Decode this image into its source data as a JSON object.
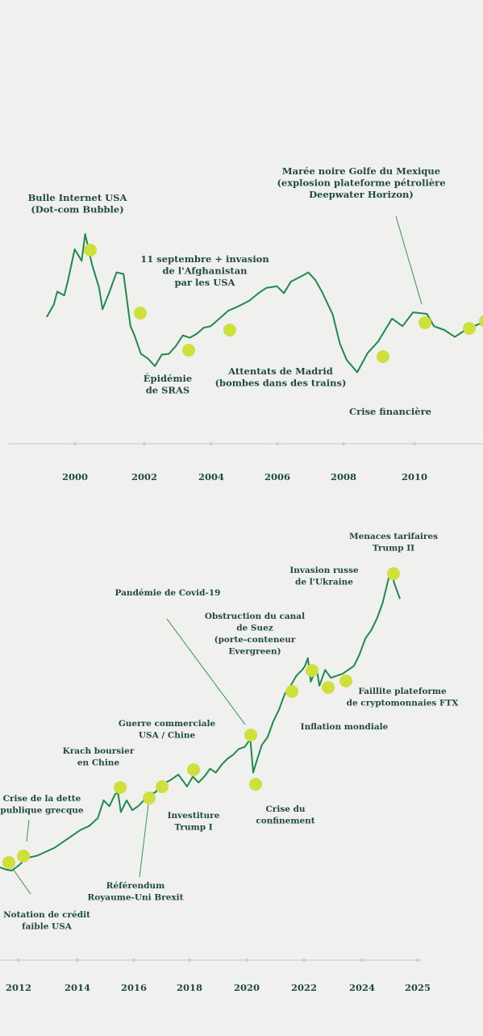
{
  "colors": {
    "background": "#f0f0ef",
    "line": "#1e8a4c",
    "marker": "#cfe03c",
    "text": "#1f4a3d",
    "axis": "#cfd1cf"
  },
  "chart_data": [
    {
      "type": "line",
      "title": "",
      "xlabel": "",
      "ylabel": "",
      "x_ticks": [
        "2000",
        "2002",
        "2004",
        "2006",
        "2008",
        "2010"
      ],
      "x": [
        1999.4,
        1999.6,
        1999.7,
        1999.9,
        2000.0,
        2000.2,
        2000.4,
        2000.5,
        2000.7,
        2000.9,
        2001.0,
        2001.2,
        2001.4,
        2001.6,
        2001.8,
        2001.9,
        2002.1,
        2002.3,
        2002.5,
        2002.7,
        2002.9,
        2003.1,
        2003.3,
        2003.5,
        2003.7,
        2003.9,
        2004.1,
        2004.3,
        2004.6,
        2004.9,
        2005.2,
        2005.5,
        2005.7,
        2006.0,
        2006.2,
        2006.4,
        2006.7,
        2006.9,
        2007.1,
        2007.3,
        2007.6,
        2007.8,
        2008.0,
        2008.3,
        2008.6,
        2008.9,
        2009.1,
        2009.3,
        2009.6,
        2009.9,
        2010.3,
        2010.5,
        2010.8,
        2011.1,
        2011.4,
        2011.7,
        2011.9,
        2012.0
      ],
      "values": [
        352,
        368,
        385,
        380,
        398,
        440,
        425,
        460,
        420,
        390,
        362,
        385,
        410,
        408,
        340,
        330,
        304,
        298,
        288,
        303,
        304,
        314,
        328,
        325,
        330,
        338,
        340,
        348,
        360,
        366,
        373,
        384,
        390,
        392,
        383,
        398,
        405,
        410,
        400,
        384,
        355,
        318,
        296,
        280,
        305,
        320,
        335,
        350,
        340,
        358,
        356,
        340,
        335,
        326,
        335,
        341,
        345,
        346
      ],
      "markers": [
        {
          "x": 2000.4,
          "y": 440,
          "label": "Bulle Internet USA\n(Dot-com Bubble)"
        },
        {
          "x": 2001.9,
          "y": 360,
          "label": "11 septembre + invasion\nde l'Afghanistan\npar les USA"
        },
        {
          "x": 2003.3,
          "y": 314,
          "label": "Épidémie\nde SRAS"
        },
        {
          "x": 2004.6,
          "y": 338,
          "label": "Attentats de Madrid\n(bombes dans des trains)"
        },
        {
          "x": 2009.1,
          "y": 305,
          "label": "Crise financière"
        },
        {
          "x": 2010.3,
          "y": 356,
          "label": "Marée noire Golfe du Mexique\n(explosion plateforme pétrolière\nDeepwater Horizon)"
        },
        {
          "x": 2011.7,
          "y": 350,
          "label": ""
        },
        {
          "x": 2012.0,
          "y": 358,
          "label": ""
        }
      ]
    },
    {
      "type": "line",
      "title": "",
      "xlabel": "",
      "ylabel": "",
      "x_ticks": [
        "2012",
        "2014",
        "2016",
        "2018",
        "2020",
        "2022",
        "2024",
        "2025"
      ],
      "x": [
        2011.4,
        2011.6,
        2011.8,
        2012.0,
        2012.2,
        2012.4,
        2012.7,
        2013.0,
        2013.3,
        2013.6,
        2013.9,
        2014.2,
        2014.5,
        2014.8,
        2015.0,
        2015.2,
        2015.4,
        2015.5,
        2015.6,
        2015.8,
        2016.0,
        2016.2,
        2016.4,
        2016.6,
        2016.8,
        2017.0,
        2017.3,
        2017.6,
        2017.9,
        2018.1,
        2018.3,
        2018.5,
        2018.7,
        2018.9,
        2019.1,
        2019.3,
        2019.5,
        2019.7,
        2019.9,
        2020.1,
        2020.2,
        2020.3,
        2020.5,
        2020.7,
        2020.9,
        2021.1,
        2021.3,
        2021.5,
        2021.7,
        2021.9,
        2022.0,
        2022.1,
        2022.2,
        2022.4,
        2022.5,
        2022.7,
        2022.9,
        2023.1,
        2023.3,
        2023.5,
        2023.7,
        2023.9,
        2024.1,
        2024.3,
        2024.5,
        2024.7,
        2024.9,
        2025.0,
        2025.1,
        2025.3
      ],
      "values": [
        60,
        55,
        52,
        62,
        75,
        85,
        90,
        100,
        110,
        125,
        140,
        155,
        165,
        185,
        230,
        215,
        245,
        250,
        200,
        230,
        205,
        215,
        230,
        245,
        250,
        270,
        280,
        295,
        265,
        290,
        275,
        290,
        310,
        300,
        320,
        335,
        345,
        360,
        365,
        385,
        300,
        325,
        370,
        390,
        430,
        460,
        500,
        520,
        545,
        560,
        570,
        590,
        530,
        565,
        520,
        560,
        540,
        545,
        550,
        560,
        570,
        600,
        640,
        660,
        690,
        730,
        790,
        810,
        780,
        740
      ],
      "markers": [
        {
          "x": 2011.6,
          "y": 56,
          "label": "Notation de crédit\nfaible USA"
        },
        {
          "x": 2012.1,
          "y": 70,
          "label": "Crise de la dette\npublique grecque"
        },
        {
          "x": 2015.5,
          "y": 250,
          "label": "Krach boursier\nen Chine"
        },
        {
          "x": 2016.5,
          "y": 225,
          "label": "Référendum\nRoyaume-Uni Brexit"
        },
        {
          "x": 2017.0,
          "y": 252,
          "label": "Investiture\nTrump I"
        },
        {
          "x": 2018.1,
          "y": 292,
          "label": "Guerre commerciale\nUSA / Chine"
        },
        {
          "x": 2020.1,
          "y": 365,
          "label": "Pandémie de Covid-19"
        },
        {
          "x": 2020.3,
          "y": 300,
          "label": "Crise du\nconfinement"
        },
        {
          "x": 2021.5,
          "y": 540,
          "label": "Obstruction du canal\nde Suez\n(porte-conteneur\nEvergreen)"
        },
        {
          "x": 2022.1,
          "y": 590,
          "label": "Inflation mondiale"
        },
        {
          "x": 2022.7,
          "y": 545,
          "label": ""
        },
        {
          "x": 2023.3,
          "y": 555,
          "label": "Faillite plateforme\nde cryptomonnaies FTX"
        },
        {
          "x": 2024.9,
          "y": 785,
          "label": "Invasion russe\nde l'Ukraine"
        }
      ]
    }
  ],
  "annotations_extra": {
    "top_trump": "Menaces tarifaires\nTrump II"
  }
}
